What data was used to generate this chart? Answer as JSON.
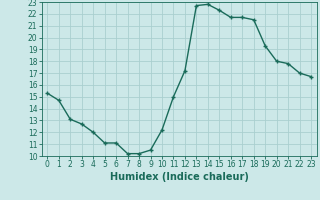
{
  "x": [
    0,
    1,
    2,
    3,
    4,
    5,
    6,
    7,
    8,
    9,
    10,
    11,
    12,
    13,
    14,
    15,
    16,
    17,
    18,
    19,
    20,
    21,
    22,
    23
  ],
  "y": [
    15.3,
    14.7,
    13.1,
    12.7,
    12.0,
    11.1,
    11.1,
    10.2,
    10.2,
    10.5,
    12.2,
    15.0,
    17.2,
    22.7,
    22.8,
    22.3,
    21.7,
    21.7,
    21.5,
    19.3,
    18.0,
    17.8,
    17.0,
    16.7
  ],
  "line_color": "#1a6b5a",
  "marker": "+",
  "bg_color": "#cce8e8",
  "grid_color": "#aacfcf",
  "xlabel": "Humidex (Indice chaleur)",
  "xlim": [
    -0.5,
    23.5
  ],
  "ylim": [
    10,
    23
  ],
  "yticks": [
    10,
    11,
    12,
    13,
    14,
    15,
    16,
    17,
    18,
    19,
    20,
    21,
    22,
    23
  ],
  "xticks": [
    0,
    1,
    2,
    3,
    4,
    5,
    6,
    7,
    8,
    9,
    10,
    11,
    12,
    13,
    14,
    15,
    16,
    17,
    18,
    19,
    20,
    21,
    22,
    23
  ],
  "tick_fontsize": 5.5,
  "xlabel_fontsize": 7,
  "linewidth": 1.0,
  "markersize": 3.5,
  "markeredgewidth": 1.0
}
